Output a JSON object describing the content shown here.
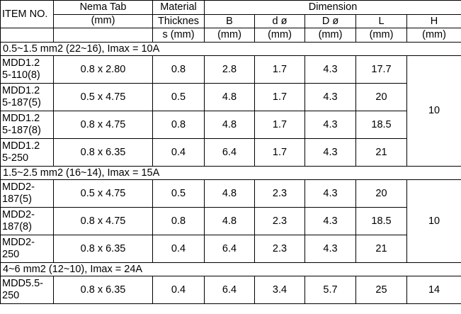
{
  "header": {
    "item_no": "ITEM NO.",
    "nema_tab": "Nema Tab",
    "nema_tab_unit": "(mm)",
    "material_l1": "Material",
    "material_l2": "Thicknes",
    "material_l3": "s (mm)",
    "dimension": "Dimension",
    "dim_cols": [
      {
        "label": "B",
        "unit": "(mm)"
      },
      {
        "label": "d ø",
        "unit": "(mm)"
      },
      {
        "label": "D ø",
        "unit": "(mm)"
      },
      {
        "label": "L",
        "unit": "(mm)"
      },
      {
        "label": "H",
        "unit": "(mm)"
      }
    ]
  },
  "groups": [
    {
      "label": "0.5~1.5 mm2 (22~16), Imax = 10A",
      "h": "10",
      "rows": [
        {
          "item_l1": "MDD1.2",
          "item_l2": "5-110(8)",
          "tab": "0.8 x 2.80",
          "thick": "0.8",
          "b": "2.8",
          "d_small": "1.7",
          "d_big": "4.3",
          "l": "17.7"
        },
        {
          "item_l1": "MDD1.2",
          "item_l2": "5-187(5)",
          "tab": "0.5 x 4.75",
          "thick": "0.5",
          "b": "4.8",
          "d_small": "1.7",
          "d_big": "4.3",
          "l": "20"
        },
        {
          "item_l1": "MDD1.2",
          "item_l2": "5-187(8)",
          "tab": "0.8 x 4.75",
          "thick": "0.8",
          "b": "4.8",
          "d_small": "1.7",
          "d_big": "4.3",
          "l": "18.5"
        },
        {
          "item_l1": "MDD1.2",
          "item_l2": "5-250",
          "tab": "0.8 x 6.35",
          "thick": "0.4",
          "b": "6.4",
          "d_small": "1.7",
          "d_big": "4.3",
          "l": "21"
        }
      ]
    },
    {
      "label": "1.5~2.5 mm2 (16~14), Imax = 15A",
      "h": "10",
      "rows": [
        {
          "item_l1": "MDD2-",
          "item_l2": "187(5)",
          "tab": "0.5 x 4.75",
          "thick": "0.5",
          "b": "4.8",
          "d_small": "2.3",
          "d_big": "4.3",
          "l": "20"
        },
        {
          "item_l1": "MDD2-",
          "item_l2": "187(8)",
          "tab": "0.8 x 4.75",
          "thick": "0.8",
          "b": "4.8",
          "d_small": "2.3",
          "d_big": "4.3",
          "l": "18.5"
        },
        {
          "item_l1": "MDD2-",
          "item_l2": "250",
          "tab": "0.8 x 6.35",
          "thick": "0.4",
          "b": "6.4",
          "d_small": "2.3",
          "d_big": "4.3",
          "l": "21"
        }
      ]
    },
    {
      "label": "4~6 mm2 (12~10), Imax = 24A",
      "h": "14",
      "rows": [
        {
          "item_l1": "MDD5.5-",
          "item_l2": "250",
          "tab": "0.8 x 6.35",
          "thick": "0.4",
          "b": "6.4",
          "d_small": "3.4",
          "d_big": "5.7",
          "l": "25"
        }
      ]
    }
  ]
}
